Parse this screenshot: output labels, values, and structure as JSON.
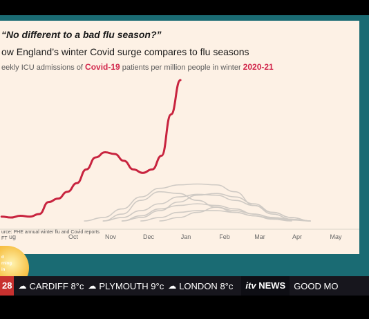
{
  "chart_data": {
    "type": "line",
    "title": "“No different to a bad flu season?”",
    "subtitle": "ow England’s winter Covid surge compares to flu seasons",
    "description": {
      "prefix": "eekly ICU admissions of ",
      "highlight1": "Covid-19",
      "middle": " patients per million people in winter ",
      "highlight2": "2020-21"
    },
    "x_ticks": [
      "ug",
      "Oct",
      "Nov",
      "Dec",
      "Jan",
      "Feb",
      "Mar",
      "Apr",
      "May"
    ],
    "series": [
      {
        "name": "Covid-19",
        "color": "#c8243f",
        "points": [
          [
            0,
            2.5
          ],
          [
            0.25,
            2
          ],
          [
            0.5,
            3
          ],
          [
            0.75,
            2.5
          ],
          [
            1,
            4
          ],
          [
            1.25,
            11
          ],
          [
            1.5,
            13
          ],
          [
            1.75,
            17
          ],
          [
            2,
            22
          ],
          [
            2.25,
            30
          ],
          [
            2.5,
            37
          ],
          [
            2.75,
            40
          ],
          [
            3,
            39
          ],
          [
            3.25,
            35
          ],
          [
            3.5,
            30
          ],
          [
            3.75,
            28
          ],
          [
            4,
            30
          ],
          [
            4.25,
            38
          ],
          [
            4.5,
            62
          ],
          [
            4.75,
            82
          ]
        ]
      },
      {
        "name": "",
        "color": "#cfcac4",
        "points": [
          [
            2,
            0
          ],
          [
            2.5,
            2
          ],
          [
            3,
            7
          ],
          [
            3.5,
            14
          ],
          [
            4,
            19
          ],
          [
            4.5,
            21
          ],
          [
            5,
            21.5
          ],
          [
            5.5,
            21
          ],
          [
            6,
            17
          ],
          [
            6.5,
            9
          ],
          [
            7,
            4
          ],
          [
            7.5,
            1
          ],
          [
            8,
            0
          ]
        ]
      },
      {
        "name": "",
        "color": "#cfcac4",
        "points": [
          [
            2.5,
            0
          ],
          [
            3,
            2
          ],
          [
            3.5,
            6
          ],
          [
            4,
            10
          ],
          [
            4.5,
            14
          ],
          [
            5,
            15.5
          ],
          [
            5.5,
            15
          ],
          [
            6,
            12
          ],
          [
            6.5,
            9
          ],
          [
            7,
            5
          ],
          [
            7.5,
            2
          ],
          [
            8,
            0
          ]
        ]
      },
      {
        "name": "",
        "color": "#cfcac4",
        "points": [
          [
            3,
            0
          ],
          [
            3.5,
            2
          ],
          [
            4,
            6
          ],
          [
            4.5,
            11
          ],
          [
            5,
            15
          ],
          [
            5.5,
            16
          ],
          [
            6,
            14
          ],
          [
            6.5,
            10
          ],
          [
            7,
            5
          ],
          [
            7.5,
            2
          ],
          [
            8,
            0
          ]
        ]
      },
      {
        "name": "",
        "color": "#cfcac4",
        "points": [
          [
            2.5,
            0
          ],
          [
            3,
            4
          ],
          [
            3.5,
            12
          ],
          [
            4,
            17
          ],
          [
            4.5,
            16
          ],
          [
            5,
            12
          ],
          [
            5.5,
            8
          ],
          [
            6,
            5
          ],
          [
            6.5,
            3
          ],
          [
            7,
            1
          ],
          [
            7.5,
            0
          ]
        ]
      },
      {
        "name": "",
        "color": "#cfcac4",
        "points": [
          [
            3,
            0
          ],
          [
            3.5,
            3
          ],
          [
            4,
            7
          ],
          [
            4.5,
            9
          ],
          [
            5,
            10
          ],
          [
            5.5,
            9
          ],
          [
            6,
            7
          ],
          [
            6.5,
            4
          ],
          [
            7,
            2
          ],
          [
            7.5,
            1
          ],
          [
            8,
            0
          ]
        ]
      },
      {
        "name": "",
        "color": "#cfcac4",
        "points": [
          [
            3.5,
            0
          ],
          [
            4,
            2
          ],
          [
            4.5,
            5
          ],
          [
            5,
            6
          ],
          [
            5.5,
            6
          ],
          [
            6,
            5
          ],
          [
            6.5,
            3
          ],
          [
            7,
            1.5
          ],
          [
            7.5,
            0.5
          ],
          [
            8,
            0
          ]
        ]
      },
      {
        "name": "",
        "color": "#cfcac4",
        "points": [
          [
            4,
            0
          ],
          [
            4.5,
            2
          ],
          [
            5,
            5
          ],
          [
            5.5,
            8
          ],
          [
            6,
            6
          ],
          [
            6.5,
            4
          ],
          [
            7,
            2
          ],
          [
            7.5,
            1
          ],
          [
            8,
            0
          ]
        ]
      }
    ],
    "ylim": [
      0,
      82
    ],
    "grid": false
  },
  "source": {
    "line1": "urce: PHE annual winter flu and Covid reports",
    "line2": "FT"
  },
  "logo": {
    "text1": "d",
    "text2": "rning",
    "text3": "in"
  },
  "ticker": {
    "left_temp": "28",
    "items": [
      {
        "city": "CARDIFF",
        "temp": "8°c",
        "icon": "cloud-icon",
        "glyph": "☁"
      },
      {
        "city": "PLYMOUTH",
        "temp": "9°c",
        "icon": "cloud-icon",
        "glyph": "☁"
      },
      {
        "city": "LONDON",
        "temp": "8°c",
        "icon": "cloud-icon",
        "glyph": "☁"
      }
    ],
    "channel": "itv",
    "channel_word": "NEWS",
    "next": "GOOD MO"
  }
}
